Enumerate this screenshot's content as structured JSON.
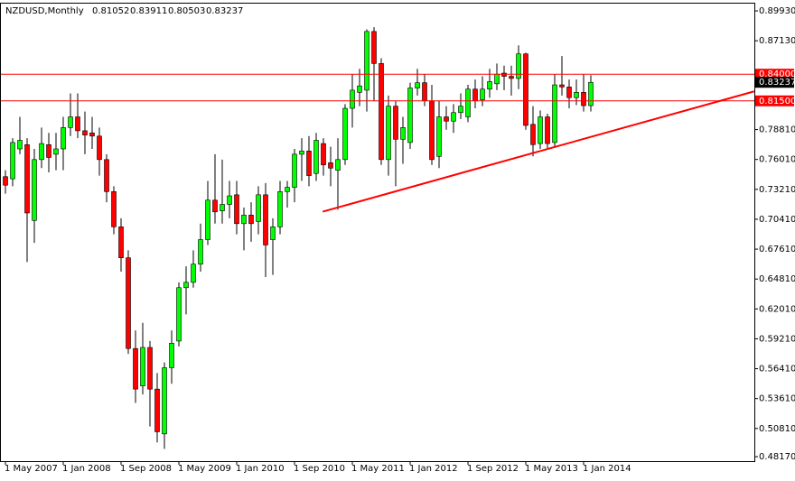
{
  "chart_data": {
    "type": "candlestick",
    "title": "NZDUSD,Monthly",
    "categories": [
      "1 May 2007",
      null,
      null,
      null,
      null,
      null,
      null,
      null,
      "1 Jan 2008",
      null,
      null,
      null,
      null,
      null,
      null,
      null,
      "1 Sep 2008",
      null,
      null,
      null,
      null,
      null,
      null,
      null,
      "1 May 2009",
      null,
      null,
      null,
      null,
      null,
      null,
      null,
      "1 Jan 2010",
      null,
      null,
      null,
      null,
      null,
      null,
      null,
      "1 Sep 2010",
      null,
      null,
      null,
      null,
      null,
      null,
      null,
      "1 May 2011",
      null,
      null,
      null,
      null,
      null,
      null,
      null,
      "1 Jan 2012",
      null,
      null,
      null,
      null,
      null,
      null,
      null,
      "1 Sep 2012",
      null,
      null,
      null,
      null,
      null,
      null,
      null,
      "1 May 2013",
      null,
      null,
      null,
      null,
      null,
      null,
      null,
      "1 Jan 2014",
      null
    ],
    "open": [
      0.744,
      0.742,
      0.77,
      0.774,
      0.703,
      0.76,
      0.774,
      0.765,
      0.77,
      0.79,
      0.8,
      0.787,
      0.785,
      0.782,
      0.76,
      0.73,
      0.697,
      0.668,
      0.583,
      0.548,
      0.584,
      0.545,
      0.503,
      0.565,
      0.59,
      0.64,
      0.645,
      0.662,
      0.685,
      0.722,
      0.712,
      0.718,
      0.727,
      0.7,
      0.708,
      0.702,
      0.727,
      0.685,
      0.697,
      0.73,
      0.734,
      0.765,
      0.768,
      0.747,
      0.775,
      0.757,
      0.75,
      0.76,
      0.808,
      0.823,
      0.825,
      0.88,
      0.85,
      0.76,
      0.81,
      0.779,
      0.776,
      0.827,
      0.832,
      0.815,
      0.763,
      0.8,
      0.796,
      0.804,
      0.8,
      0.826,
      0.816,
      0.826,
      0.831,
      0.841,
      0.838,
      0.836,
      0.859,
      0.793,
      0.775,
      0.8,
      0.776,
      0.83,
      0.828,
      0.818,
      0.823,
      0.81052
    ],
    "high": [
      0.75,
      0.78,
      0.8,
      0.78,
      0.77,
      0.79,
      0.785,
      0.785,
      0.8,
      0.822,
      0.822,
      0.805,
      0.8,
      0.79,
      0.765,
      0.735,
      0.705,
      0.675,
      0.6,
      0.607,
      0.59,
      0.56,
      0.57,
      0.6,
      0.645,
      0.66,
      0.675,
      0.7,
      0.74,
      0.765,
      0.76,
      0.74,
      0.74,
      0.715,
      0.72,
      0.735,
      0.738,
      0.705,
      0.74,
      0.74,
      0.77,
      0.78,
      0.782,
      0.785,
      0.78,
      0.772,
      0.78,
      0.812,
      0.84,
      0.845,
      0.882,
      0.884,
      0.855,
      0.82,
      0.815,
      0.8,
      0.832,
      0.845,
      0.84,
      0.83,
      0.815,
      0.81,
      0.812,
      0.822,
      0.83,
      0.835,
      0.838,
      0.845,
      0.85,
      0.848,
      0.848,
      0.867,
      0.86,
      0.81,
      0.806,
      0.803,
      0.84,
      0.857,
      0.835,
      0.835,
      0.84,
      0.83911
    ],
    "low": [
      0.728,
      0.735,
      0.765,
      0.664,
      0.682,
      0.752,
      0.748,
      0.75,
      0.75,
      0.782,
      0.78,
      0.765,
      0.77,
      0.745,
      0.72,
      0.69,
      0.655,
      0.578,
      0.532,
      0.54,
      0.51,
      0.495,
      0.489,
      0.55,
      0.585,
      0.615,
      0.64,
      0.655,
      0.68,
      0.7,
      0.7,
      0.705,
      0.69,
      0.675,
      0.683,
      0.69,
      0.65,
      0.652,
      0.69,
      0.715,
      0.72,
      0.74,
      0.735,
      0.74,
      0.745,
      0.735,
      0.713,
      0.755,
      0.79,
      0.81,
      0.805,
      0.815,
      0.755,
      0.745,
      0.735,
      0.756,
      0.77,
      0.82,
      0.81,
      0.755,
      0.752,
      0.788,
      0.785,
      0.798,
      0.795,
      0.808,
      0.81,
      0.818,
      0.825,
      0.825,
      0.82,
      0.826,
      0.788,
      0.763,
      0.77,
      0.77,
      0.771,
      0.82,
      0.808,
      0.811,
      0.805,
      0.80503
    ],
    "close": [
      0.736,
      0.776,
      0.778,
      0.71,
      0.76,
      0.775,
      0.762,
      0.77,
      0.79,
      0.8,
      0.787,
      0.783,
      0.782,
      0.76,
      0.73,
      0.697,
      0.668,
      0.583,
      0.545,
      0.584,
      0.545,
      0.505,
      0.565,
      0.588,
      0.64,
      0.645,
      0.662,
      0.685,
      0.722,
      0.711,
      0.718,
      0.726,
      0.7,
      0.708,
      0.7,
      0.727,
      0.68,
      0.697,
      0.73,
      0.734,
      0.765,
      0.768,
      0.745,
      0.778,
      0.755,
      0.752,
      0.76,
      0.808,
      0.825,
      0.829,
      0.88,
      0.85,
      0.76,
      0.81,
      0.779,
      0.79,
      0.827,
      0.832,
      0.815,
      0.76,
      0.8,
      0.796,
      0.804,
      0.81,
      0.826,
      0.815,
      0.826,
      0.833,
      0.84,
      0.838,
      0.836,
      0.859,
      0.792,
      0.774,
      0.8,
      0.775,
      0.83,
      0.828,
      0.818,
      0.823,
      0.81052,
      0.83237
    ],
    "up_color": "#00ff00",
    "down_color": "#ff0000",
    "ylim": [
      0.4775,
      0.9061
    ],
    "yticks": [
      {
        "value": 0.8993,
        "label": "0.89930"
      },
      {
        "value": 0.8713,
        "label": "0.87130"
      },
      {
        "value": 0.7881,
        "label": "0.78810"
      },
      {
        "value": 0.7601,
        "label": "0.76010"
      },
      {
        "value": 0.7321,
        "label": "0.73210"
      },
      {
        "value": 0.7041,
        "label": "0.70410"
      },
      {
        "value": 0.6761,
        "label": "0.67610"
      },
      {
        "value": 0.6481,
        "label": "0.64810"
      },
      {
        "value": 0.6201,
        "label": "0.62010"
      },
      {
        "value": 0.5921,
        "label": "0.59210"
      },
      {
        "value": 0.5641,
        "label": "0.56410"
      },
      {
        "value": 0.5361,
        "label": "0.53610"
      },
      {
        "value": 0.5081,
        "label": "0.50810"
      },
      {
        "value": 0.4817,
        "label": "0.48170"
      }
    ],
    "hlines": [
      {
        "value": 0.84,
        "label": "0.84000"
      },
      {
        "value": 0.815,
        "label": "0.81500"
      }
    ],
    "line_color": "#ff0000",
    "trendline": {
      "x": [
        43.9,
        103.6
      ],
      "y": [
        0.7112,
        0.8239
      ]
    }
  }
}
